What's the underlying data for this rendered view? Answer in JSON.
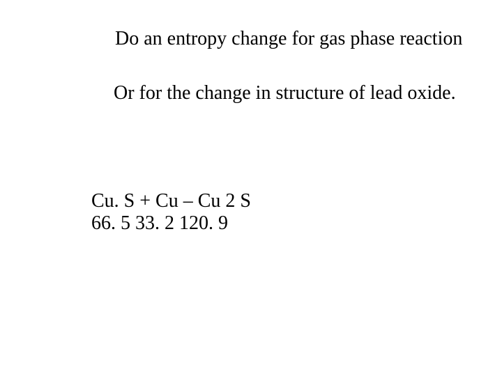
{
  "text": {
    "line1": "Do an entropy change for gas phase reaction",
    "line2": "Or for the change in structure of lead oxide.",
    "formula": "Cu. S + Cu – Cu 2 S",
    "values": "66. 5     33. 2     120. 9"
  },
  "style": {
    "font_family": "Times New Roman",
    "font_size_pt": 21,
    "text_color": "#000000",
    "background_color": "#ffffff"
  }
}
